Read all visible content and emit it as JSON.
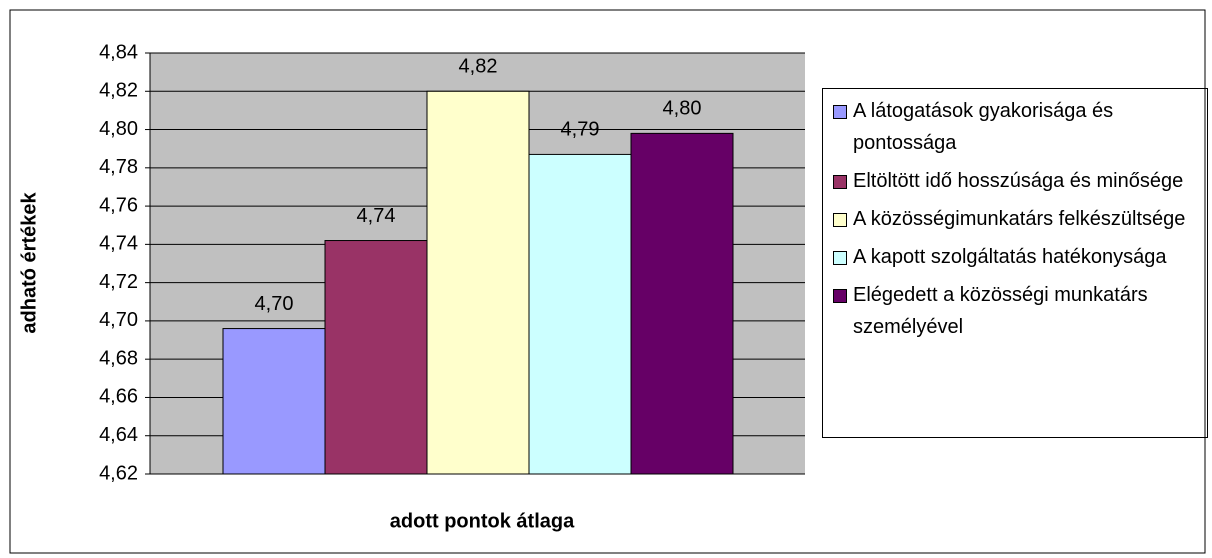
{
  "chart_data": {
    "type": "bar",
    "y_label": "adható értékek",
    "x_label": "adott pontok átlaga",
    "ylim": [
      4.62,
      4.84
    ],
    "yticks": [
      {
        "value": 4.62,
        "label": "4,62"
      },
      {
        "value": 4.64,
        "label": "4,64"
      },
      {
        "value": 4.66,
        "label": "4,66"
      },
      {
        "value": 4.68,
        "label": "4,68"
      },
      {
        "value": 4.7,
        "label": "4,70"
      },
      {
        "value": 4.72,
        "label": "4,72"
      },
      {
        "value": 4.74,
        "label": "4,74"
      },
      {
        "value": 4.76,
        "label": "4,76"
      },
      {
        "value": 4.78,
        "label": "4,78"
      },
      {
        "value": 4.8,
        "label": "4,80"
      },
      {
        "value": 4.82,
        "label": "4,82"
      },
      {
        "value": 4.84,
        "label": "4,84"
      }
    ],
    "grid": true,
    "legend": "right",
    "series": [
      {
        "name": "A látogatások gyakorisága és pontossága",
        "color": "#9999ff",
        "values": [
          4.696
        ],
        "value_labels": [
          "4,70"
        ]
      },
      {
        "name": "Eltöltött idő hosszúsága és minősége",
        "color": "#993366",
        "values": [
          4.742
        ],
        "value_labels": [
          "4,74"
        ]
      },
      {
        "name": "A közösségimunkatárs felkészültsége",
        "color": "#ffffcc",
        "values": [
          4.82
        ],
        "value_labels": [
          "4,82"
        ]
      },
      {
        "name": "A kapott szolgáltatás hatékonysága",
        "color": "#ccffff",
        "values": [
          4.787
        ],
        "value_labels": [
          "4,79"
        ]
      },
      {
        "name": "Elégedett a közösségi munkatárs személyével",
        "color": "#660066",
        "values": [
          4.798
        ],
        "value_labels": [
          "4,80"
        ]
      }
    ]
  }
}
